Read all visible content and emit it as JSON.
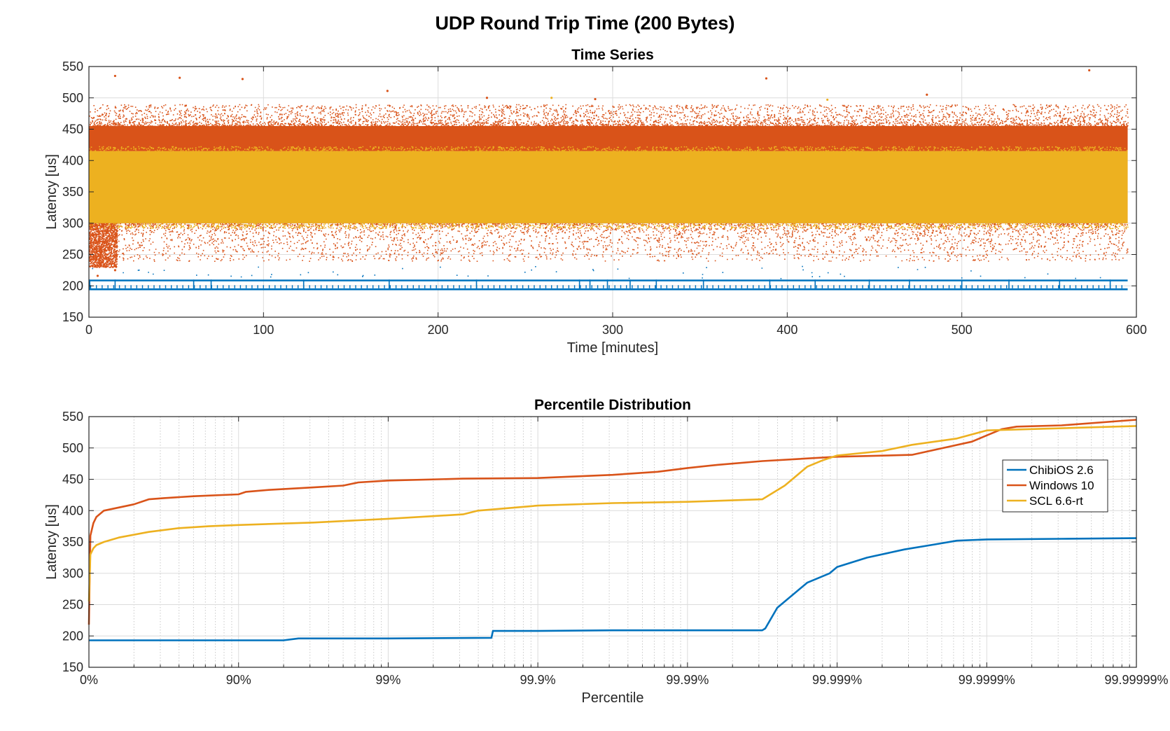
{
  "figure_title": "UDP Round Trip Time (200 Bytes)",
  "colors": {
    "chibios": "#0072BD",
    "windows": "#D95319",
    "scl": "#EDB120",
    "grid_major": "#dcdcdc",
    "grid_minor": "#c8c8c8",
    "axis": "#262626"
  },
  "chart_data": [
    {
      "type": "scatter",
      "title": "Time Series",
      "xlabel": "Time [minutes]",
      "ylabel": "Latency [us]",
      "xlim": [
        0,
        600
      ],
      "ylim": [
        150,
        550
      ],
      "xticks": [
        0,
        100,
        200,
        300,
        400,
        500,
        600
      ],
      "xtick_labels": [
        "0",
        "100",
        "200",
        "300",
        "400",
        "500",
        "600"
      ],
      "yticks": [
        150,
        200,
        250,
        300,
        350,
        400,
        450,
        500,
        550
      ],
      "ytick_labels": [
        "150",
        "200",
        "250",
        "300",
        "350",
        "400",
        "450",
        "500",
        "550"
      ],
      "grid": true,
      "series": [
        {
          "name": "ChibiOS 2.6",
          "color": "#0072BD",
          "bands": [
            [
              193,
              196
            ],
            [
              208,
              210
            ]
          ],
          "x_range": [
            0,
            595
          ],
          "spike_times": [
            0.5,
            15,
            60,
            70,
            123,
            172,
            222,
            281,
            287,
            297,
            310,
            325,
            352,
            390,
            416,
            447,
            470,
            500,
            527,
            556,
            585
          ],
          "spike_top": 232
        },
        {
          "name": "Windows 10",
          "color": "#D95319",
          "bands": [
            [
              415,
              455
            ],
            [
              300,
              415
            ],
            [
              250,
              300
            ]
          ],
          "x_range": [
            0,
            595
          ],
          "outliers": [
            [
              15,
              535
            ],
            [
              52,
              532
            ],
            [
              88,
              530
            ],
            [
              573,
              544
            ],
            [
              388,
              531
            ],
            [
              171,
              511
            ],
            [
              228,
              500
            ],
            [
              290,
              498
            ],
            [
              480,
              505
            ],
            [
              5,
              216
            ],
            [
              15,
              225
            ]
          ]
        },
        {
          "name": "SCL 6.6-rt",
          "color": "#EDB120",
          "bands": [
            [
              300,
              415
            ]
          ],
          "x_range": [
            0,
            595
          ],
          "outliers": [
            [
              265,
              500
            ],
            [
              423,
              497
            ]
          ]
        }
      ]
    },
    {
      "type": "line",
      "title": "Percentile Distribution",
      "xlabel": "Percentile",
      "ylabel": "Latency [us]",
      "x_scale": "log(1/(1-p))",
      "xlim": [
        0,
        7
      ],
      "ylim": [
        150,
        550
      ],
      "xticks": [
        0,
        1,
        2,
        3,
        4,
        5,
        6,
        7
      ],
      "xtick_labels": [
        "0%",
        "90%",
        "99%",
        "99.9%",
        "99.99%",
        "99.999%",
        "99.9999%",
        "99.99999%"
      ],
      "yticks": [
        150,
        200,
        250,
        300,
        350,
        400,
        450,
        500,
        550
      ],
      "ytick_labels": [
        "150",
        "200",
        "250",
        "300",
        "350",
        "400",
        "450",
        "500",
        "550"
      ],
      "grid": true,
      "minor_grid": true,
      "legend_position": "right",
      "series": [
        {
          "name": "ChibiOS 2.6",
          "color": "#0072BD",
          "x": [
            0,
            1.0,
            1.3,
            1.4,
            2.0,
            2.69,
            2.7,
            3.0,
            3.5,
            4.0,
            4.5,
            4.52,
            4.6,
            4.8,
            4.95,
            5.0,
            5.2,
            5.45,
            5.65,
            5.8,
            6.0,
            6.5,
            7.0
          ],
          "y": [
            193,
            193,
            193,
            196,
            196,
            197,
            208,
            208,
            209,
            209,
            209,
            212,
            245,
            285,
            300,
            310,
            325,
            338,
            346,
            352,
            354,
            355,
            356
          ]
        },
        {
          "name": "Windows 10",
          "color": "#D95319",
          "x": [
            0,
            0.01,
            0.03,
            0.05,
            0.1,
            0.2,
            0.3,
            0.4,
            0.5,
            0.7,
            1.0,
            1.05,
            1.2,
            1.5,
            1.7,
            1.8,
            2.0,
            2.5,
            3.0,
            3.5,
            3.8,
            4.0,
            4.2,
            4.5,
            5.0,
            5.5,
            5.9,
            6.0,
            6.1,
            6.2,
            6.5,
            7.0
          ],
          "y": [
            218,
            360,
            380,
            390,
            400,
            405,
            410,
            418,
            420,
            423,
            426,
            430,
            433,
            437,
            440,
            445,
            448,
            451,
            452,
            457,
            462,
            468,
            473,
            479,
            486,
            489,
            510,
            520,
            530,
            534,
            536,
            545
          ]
        },
        {
          "name": "SCL 6.6-rt",
          "color": "#EDB120",
          "x": [
            0,
            0.01,
            0.03,
            0.05,
            0.1,
            0.2,
            0.4,
            0.6,
            0.8,
            1.0,
            1.5,
            2.0,
            2.5,
            2.6,
            3.0,
            3.5,
            4.0,
            4.5,
            4.65,
            4.8,
            4.9,
            5.0,
            5.3,
            5.5,
            5.8,
            6.0,
            7.0
          ],
          "y": [
            255,
            330,
            340,
            345,
            350,
            357,
            366,
            372,
            375,
            377,
            381,
            387,
            394,
            400,
            408,
            412,
            414,
            418,
            440,
            470,
            480,
            488,
            495,
            505,
            515,
            528,
            535
          ]
        }
      ]
    }
  ]
}
